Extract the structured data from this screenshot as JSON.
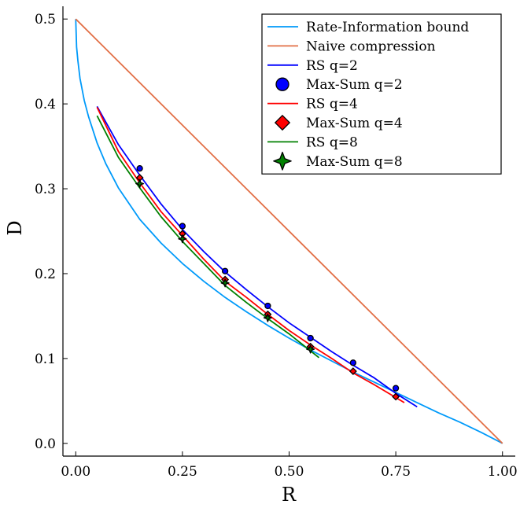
{
  "chart_data": {
    "type": "line",
    "title": "",
    "xlabel": "R",
    "ylabel": "D",
    "xlim": [
      -0.03,
      1.03
    ],
    "ylim": [
      -0.015,
      0.515
    ],
    "xticks": [
      0.0,
      0.25,
      0.5,
      0.75,
      1.0
    ],
    "xtick_labels": [
      "0.00",
      "0.25",
      "0.50",
      "0.75",
      "1.00"
    ],
    "yticks": [
      0.0,
      0.1,
      0.2,
      0.3,
      0.4,
      0.5
    ],
    "ytick_labels": [
      "0.0",
      "0.1",
      "0.2",
      "0.3",
      "0.4",
      "0.5"
    ],
    "grid": false,
    "legend_position": "top-right",
    "series": [
      {
        "name": "Rate-Information bound",
        "kind": "line",
        "color": "#009AFA",
        "x": [
          0.0,
          0.002,
          0.005,
          0.01,
          0.02,
          0.03,
          0.05,
          0.07,
          0.1,
          0.15,
          0.2,
          0.25,
          0.3,
          0.35,
          0.4,
          0.45,
          0.5,
          0.55,
          0.6,
          0.65,
          0.7,
          0.75,
          0.8,
          0.85,
          0.9,
          0.95,
          1.0
        ],
        "y": [
          0.5,
          0.467,
          0.451,
          0.43,
          0.404,
          0.385,
          0.354,
          0.33,
          0.301,
          0.264,
          0.236,
          0.212,
          0.191,
          0.172,
          0.155,
          0.139,
          0.124,
          0.11,
          0.097,
          0.084,
          0.072,
          0.06,
          0.048,
          0.036,
          0.025,
          0.013,
          0.0
        ]
      },
      {
        "name": "Naive compression",
        "kind": "line",
        "color": "#E26F46",
        "x": [
          0.0,
          1.0
        ],
        "y": [
          0.5,
          0.0
        ]
      },
      {
        "name": "RS q=2",
        "kind": "line",
        "color": "#0000FF",
        "x": [
          0.05,
          0.1,
          0.15,
          0.2,
          0.25,
          0.3,
          0.35,
          0.4,
          0.45,
          0.5,
          0.55,
          0.6,
          0.65,
          0.7,
          0.75,
          0.8
        ],
        "y": [
          0.397,
          0.352,
          0.316,
          0.282,
          0.252,
          0.226,
          0.202,
          0.181,
          0.161,
          0.142,
          0.125,
          0.108,
          0.092,
          0.077,
          0.059,
          0.043
        ]
      },
      {
        "name": "Max-Sum q=2",
        "kind": "markers",
        "color": "#0000FF",
        "marker": "circle",
        "x": [
          0.15,
          0.25,
          0.35,
          0.45,
          0.55,
          0.65,
          0.75
        ],
        "y": [
          0.324,
          0.256,
          0.203,
          0.162,
          0.124,
          0.095,
          0.065
        ]
      },
      {
        "name": "RS q=4",
        "kind": "line",
        "color": "#FF0000",
        "x": [
          0.05,
          0.1,
          0.15,
          0.2,
          0.25,
          0.3,
          0.35,
          0.4,
          0.45,
          0.5,
          0.55,
          0.6,
          0.65,
          0.7,
          0.77
        ],
        "y": [
          0.396,
          0.344,
          0.307,
          0.273,
          0.245,
          0.217,
          0.191,
          0.172,
          0.152,
          0.133,
          0.116,
          0.1,
          0.083,
          0.069,
          0.048
        ]
      },
      {
        "name": "Max-Sum q=4",
        "kind": "markers",
        "color": "#FF0000",
        "marker": "diamond",
        "x": [
          0.15,
          0.25,
          0.35,
          0.45,
          0.55,
          0.65,
          0.75
        ],
        "y": [
          0.313,
          0.247,
          0.193,
          0.152,
          0.114,
          0.085,
          0.055
        ]
      },
      {
        "name": "RS q=8",
        "kind": "line",
        "color": "#008000",
        "x": [
          0.05,
          0.1,
          0.15,
          0.2,
          0.25,
          0.3,
          0.35,
          0.4,
          0.45,
          0.5,
          0.57
        ],
        "y": [
          0.386,
          0.337,
          0.301,
          0.267,
          0.238,
          0.212,
          0.186,
          0.166,
          0.147,
          0.129,
          0.101
        ]
      },
      {
        "name": "Max-Sum q=8",
        "kind": "markers",
        "color": "#008000",
        "marker": "star",
        "x": [
          0.15,
          0.25,
          0.35,
          0.45,
          0.55
        ],
        "y": [
          0.306,
          0.241,
          0.189,
          0.148,
          0.111
        ]
      }
    ]
  }
}
